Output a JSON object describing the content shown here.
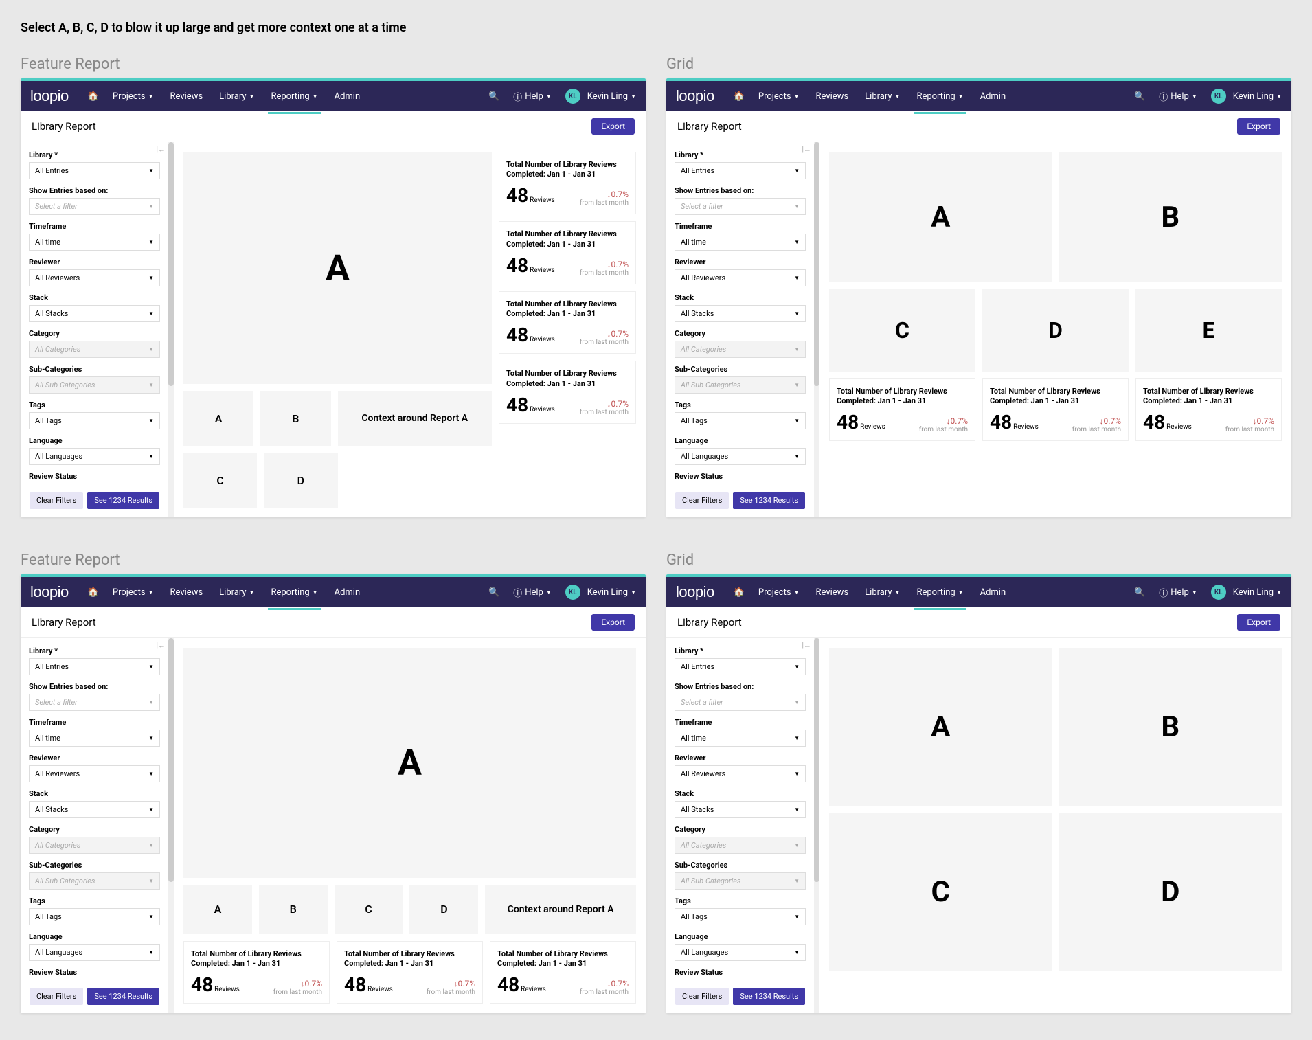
{
  "page_instruction": "Select A, B, C, D to blow it up large and get more context one at a time",
  "variant_labels": {
    "feature": "Feature Report",
    "grid": "Grid"
  },
  "nav": {
    "logo": "loopio",
    "items": [
      "Projects",
      "Reviews",
      "Library",
      "Reporting",
      "Admin"
    ],
    "help": "Help",
    "user_initials": "KL",
    "user_name": "Kevin Ling"
  },
  "subheader": {
    "title": "Library Report",
    "export": "Export"
  },
  "filters": [
    {
      "label": "Library *",
      "value": "All Entries",
      "disabled": false,
      "italic": false
    },
    {
      "label": "Show Entries based on:",
      "value": "Select a filter",
      "disabled": false,
      "italic": true
    },
    {
      "label": "Timeframe",
      "value": "All time",
      "disabled": false,
      "italic": false
    },
    {
      "label": "Reviewer",
      "value": "All Reviewers",
      "disabled": false,
      "italic": false
    },
    {
      "label": "Stack",
      "value": "All Stacks",
      "disabled": false,
      "italic": false
    },
    {
      "label": "Category",
      "value": "All Categories",
      "disabled": true,
      "italic": true
    },
    {
      "label": "Sub-Categories",
      "value": "All Sub-Categories",
      "disabled": true,
      "italic": true
    },
    {
      "label": "Tags",
      "value": "All Tags",
      "disabled": false,
      "italic": false
    },
    {
      "label": "Language",
      "value": "All Languages",
      "disabled": false,
      "italic": false
    },
    {
      "label": "Review Status",
      "value": "",
      "disabled": false,
      "italic": false
    }
  ],
  "filter_actions": {
    "clear": "Clear Filters",
    "results": "See 1234 Results"
  },
  "metric": {
    "title": "Total Number of Library Reviews",
    "subtitle": "Completed: Jan 1 - Jan 31",
    "value": "48",
    "unit": "Reviews",
    "change": "↓0.7%",
    "change_label": "from last month"
  },
  "context_text": "Context around Report A",
  "tiles": {
    "a": "A",
    "b": "B",
    "c": "C",
    "d": "D",
    "e": "E"
  },
  "colors": {
    "nav_bg": "#2c2757",
    "teal": "#4ecdc4",
    "export_btn": "#4038a8",
    "page_bg": "#e8e8e8",
    "tile_bg": "#f5f5f5",
    "change_red": "#c05050"
  }
}
